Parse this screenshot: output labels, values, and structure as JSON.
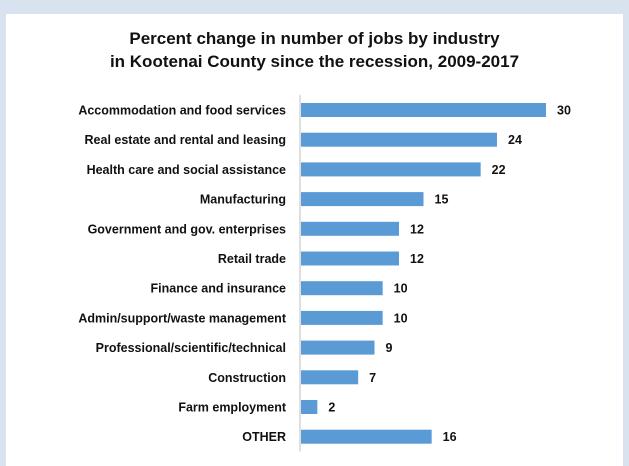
{
  "chart_data": {
    "type": "bar",
    "orientation": "horizontal",
    "title_line1": "Percent change in number of jobs by industry",
    "title_line2": "in Kootenai County since the recession, 2009-2017",
    "categories": [
      "Accommodation and food services",
      "Real estate and rental and leasing",
      "Health care and social assistance",
      "Manufacturing",
      "Government and gov. enterprises",
      "Retail trade",
      "Finance and insurance",
      "Admin/support/waste management",
      "Professional/scientific/technical",
      "Construction",
      "Farm employment",
      "OTHER"
    ],
    "values": [
      30,
      24,
      22,
      15,
      12,
      12,
      10,
      10,
      9,
      7,
      2,
      16
    ],
    "bar_color": "#5b9bd5",
    "xlim": [
      0,
      30
    ],
    "grid": false,
    "legend": "none"
  }
}
